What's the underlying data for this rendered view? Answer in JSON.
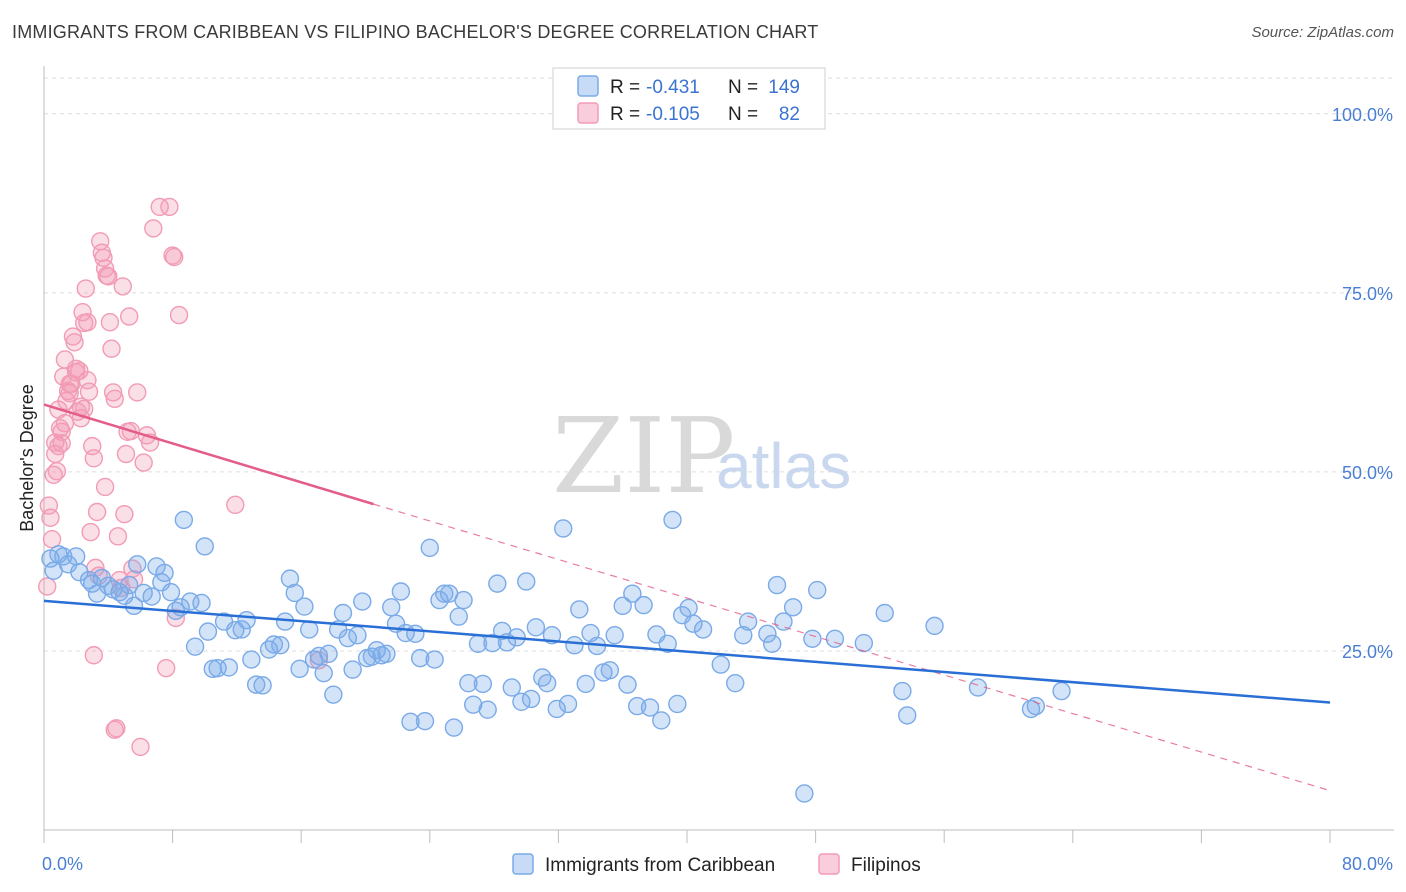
{
  "header": {
    "title": "IMMIGRANTS FROM CARIBBEAN VS FILIPINO BACHELOR'S DEGREE CORRELATION CHART",
    "source": "Source: ZipAtlas.com"
  },
  "watermark": {
    "zip": "ZIP",
    "atlas": "atlas"
  },
  "stats": [
    {
      "r_label": "R =",
      "r_value": "-0.431",
      "n_label": "N =",
      "n_value": "149",
      "color": "#7aaae8"
    },
    {
      "r_label": "R =",
      "r_value": "-0.105",
      "n_label": "N =",
      "n_value": "82",
      "color": "#f29bb5"
    }
  ],
  "chart_data": {
    "type": "scatter",
    "title": "IMMIGRANTS FROM CARIBBEAN VS FILIPINO BACHELOR'S DEGREE CORRELATION CHART",
    "xlabel": "",
    "ylabel": "Bachelor's Degree",
    "xlim": [
      0,
      80
    ],
    "ylim": [
      0,
      105
    ],
    "x_tick_labels": [
      "0.0%",
      "80.0%"
    ],
    "y_ticks": [
      25,
      50,
      75,
      100
    ],
    "y_tick_labels": [
      "25.0%",
      "50.0%",
      "75.0%",
      "100.0%"
    ],
    "grid": true,
    "legend": [
      "Immigrants from Caribbean",
      "Filipinos"
    ],
    "series": [
      {
        "name": "Immigrants from Caribbean",
        "color": "#7aaae8",
        "line_color": "#2a6fd6",
        "trend": {
          "x0": 0,
          "y0": 32.0,
          "x1": 80,
          "y1": 17.8
        },
        "points": [
          [
            0.4,
            37.9
          ],
          [
            0.6,
            36.2
          ],
          [
            0.9,
            38.5
          ],
          [
            1.2,
            38.2
          ],
          [
            1.5,
            37.1
          ],
          [
            2.0,
            38.2
          ],
          [
            2.2,
            36.0
          ],
          [
            2.8,
            34.9
          ],
          [
            3.0,
            34.4
          ],
          [
            3.3,
            33.0
          ],
          [
            3.6,
            35.2
          ],
          [
            4.0,
            34.1
          ],
          [
            4.3,
            33.6
          ],
          [
            4.7,
            33.2
          ],
          [
            5.0,
            32.7
          ],
          [
            5.3,
            34.2
          ],
          [
            5.6,
            31.3
          ],
          [
            5.8,
            37.1
          ],
          [
            6.2,
            33.1
          ],
          [
            6.7,
            32.6
          ],
          [
            7.0,
            36.8
          ],
          [
            7.3,
            34.6
          ],
          [
            7.5,
            35.9
          ],
          [
            7.9,
            33.2
          ],
          [
            8.2,
            30.6
          ],
          [
            8.5,
            31.1
          ],
          [
            8.7,
            43.3
          ],
          [
            9.1,
            31.9
          ],
          [
            9.4,
            25.6
          ],
          [
            9.8,
            31.7
          ],
          [
            10.0,
            39.6
          ],
          [
            10.2,
            27.7
          ],
          [
            10.5,
            22.5
          ],
          [
            10.8,
            22.6
          ],
          [
            11.2,
            29.1
          ],
          [
            11.5,
            22.7
          ],
          [
            11.9,
            27.9
          ],
          [
            12.3,
            28.0
          ],
          [
            12.6,
            29.3
          ],
          [
            12.9,
            23.8
          ],
          [
            13.2,
            20.3
          ],
          [
            13.6,
            20.2
          ],
          [
            14.0,
            25.2
          ],
          [
            14.3,
            25.9
          ],
          [
            14.7,
            25.8
          ],
          [
            15.0,
            29.1
          ],
          [
            15.3,
            35.1
          ],
          [
            15.6,
            33.1
          ],
          [
            15.9,
            22.5
          ],
          [
            16.2,
            31.2
          ],
          [
            16.5,
            28.0
          ],
          [
            16.8,
            23.8
          ],
          [
            17.1,
            24.3
          ],
          [
            17.4,
            21.9
          ],
          [
            17.7,
            24.6
          ],
          [
            18.0,
            18.9
          ],
          [
            18.3,
            28.0
          ],
          [
            18.6,
            30.3
          ],
          [
            18.9,
            26.8
          ],
          [
            19.2,
            22.4
          ],
          [
            19.5,
            27.2
          ],
          [
            19.8,
            31.9
          ],
          [
            20.1,
            24.0
          ],
          [
            20.4,
            24.2
          ],
          [
            20.7,
            25.1
          ],
          [
            21.0,
            24.4
          ],
          [
            21.3,
            24.6
          ],
          [
            21.6,
            31.1
          ],
          [
            21.9,
            28.8
          ],
          [
            22.2,
            33.3
          ],
          [
            22.5,
            27.5
          ],
          [
            22.8,
            15.1
          ],
          [
            23.1,
            27.4
          ],
          [
            23.4,
            24.0
          ],
          [
            23.7,
            15.2
          ],
          [
            24.0,
            39.4
          ],
          [
            24.3,
            23.8
          ],
          [
            24.6,
            32.1
          ],
          [
            24.9,
            33.0
          ],
          [
            25.2,
            33.0
          ],
          [
            25.5,
            14.3
          ],
          [
            25.8,
            29.8
          ],
          [
            26.1,
            32.1
          ],
          [
            26.4,
            20.5
          ],
          [
            26.7,
            17.5
          ],
          [
            27.0,
            26.0
          ],
          [
            27.3,
            20.4
          ],
          [
            27.6,
            16.8
          ],
          [
            27.9,
            26.1
          ],
          [
            28.2,
            34.4
          ],
          [
            28.5,
            27.8
          ],
          [
            28.8,
            26.2
          ],
          [
            29.1,
            19.9
          ],
          [
            29.4,
            26.9
          ],
          [
            29.7,
            17.9
          ],
          [
            30.0,
            34.7
          ],
          [
            30.3,
            18.3
          ],
          [
            30.6,
            28.3
          ],
          [
            31.0,
            21.3
          ],
          [
            31.3,
            20.5
          ],
          [
            31.6,
            27.2
          ],
          [
            31.9,
            16.9
          ],
          [
            32.3,
            42.1
          ],
          [
            32.6,
            17.6
          ],
          [
            33.0,
            25.8
          ],
          [
            33.3,
            30.8
          ],
          [
            33.7,
            20.4
          ],
          [
            34.0,
            27.5
          ],
          [
            34.4,
            25.7
          ],
          [
            34.8,
            22.0
          ],
          [
            35.2,
            22.3
          ],
          [
            35.5,
            27.2
          ],
          [
            36.0,
            31.3
          ],
          [
            36.3,
            20.3
          ],
          [
            36.6,
            33.0
          ],
          [
            36.9,
            17.3
          ],
          [
            37.3,
            31.4
          ],
          [
            37.7,
            17.1
          ],
          [
            38.1,
            27.3
          ],
          [
            38.4,
            15.3
          ],
          [
            38.8,
            26.0
          ],
          [
            39.1,
            43.3
          ],
          [
            39.4,
            17.6
          ],
          [
            39.7,
            30.0
          ],
          [
            40.1,
            31.0
          ],
          [
            40.4,
            28.8
          ],
          [
            41.0,
            28.0
          ],
          [
            42.1,
            23.1
          ],
          [
            43.0,
            20.5
          ],
          [
            43.5,
            27.2
          ],
          [
            43.8,
            29.1
          ],
          [
            45.0,
            27.4
          ],
          [
            45.3,
            26.0
          ],
          [
            45.6,
            34.2
          ],
          [
            46.0,
            29.1
          ],
          [
            46.6,
            31.1
          ],
          [
            47.8,
            26.7
          ],
          [
            48.1,
            33.5
          ],
          [
            49.2,
            26.7
          ],
          [
            51.0,
            26.1
          ],
          [
            52.3,
            30.3
          ],
          [
            53.4,
            19.4
          ],
          [
            53.7,
            16.0
          ],
          [
            55.4,
            28.5
          ],
          [
            58.1,
            19.9
          ],
          [
            61.4,
            16.9
          ],
          [
            61.7,
            17.3
          ],
          [
            63.3,
            19.4
          ],
          [
            47.3,
            5.1
          ]
        ]
      },
      {
        "name": "Filipinos",
        "color": "#f29bb5",
        "line_color": "#e45d8a",
        "trend": {
          "x0": 0,
          "y0": 59.4,
          "x1": 20.5,
          "y1": 45.5
        },
        "trend_dashed": {
          "x0": 20.5,
          "y0": 45.5,
          "x1": 80,
          "y1": 5.5
        },
        "points": [
          [
            0.2,
            34.0
          ],
          [
            0.3,
            45.3
          ],
          [
            0.4,
            43.6
          ],
          [
            0.5,
            40.6
          ],
          [
            0.6,
            49.6
          ],
          [
            0.7,
            54.1
          ],
          [
            0.8,
            50.1
          ],
          [
            0.9,
            53.6
          ],
          [
            1.0,
            56.1
          ],
          [
            1.1,
            55.6
          ],
          [
            1.2,
            63.3
          ],
          [
            1.3,
            56.8
          ],
          [
            1.4,
            59.9
          ],
          [
            1.5,
            61.3
          ],
          [
            1.6,
            62.3
          ],
          [
            1.7,
            62.3
          ],
          [
            1.8,
            68.9
          ],
          [
            1.9,
            68.1
          ],
          [
            2.0,
            63.9
          ],
          [
            2.1,
            58.4
          ],
          [
            2.2,
            64.1
          ],
          [
            2.3,
            59.1
          ],
          [
            2.4,
            72.3
          ],
          [
            2.5,
            70.8
          ],
          [
            2.6,
            75.6
          ],
          [
            2.7,
            70.9
          ],
          [
            2.8,
            61.2
          ],
          [
            2.9,
            41.6
          ],
          [
            3.0,
            53.6
          ],
          [
            3.1,
            51.9
          ],
          [
            3.2,
            36.6
          ],
          [
            3.3,
            44.4
          ],
          [
            3.4,
            35.5
          ],
          [
            3.5,
            82.2
          ],
          [
            3.6,
            80.6
          ],
          [
            3.7,
            79.9
          ],
          [
            3.8,
            78.4
          ],
          [
            3.9,
            77.4
          ],
          [
            4.0,
            77.3
          ],
          [
            4.1,
            70.9
          ],
          [
            4.2,
            67.2
          ],
          [
            4.3,
            61.1
          ],
          [
            4.4,
            14.0
          ],
          [
            4.5,
            14.2
          ],
          [
            4.6,
            41.0
          ],
          [
            4.7,
            34.9
          ],
          [
            4.8,
            33.8
          ],
          [
            4.9,
            75.9
          ],
          [
            5.0,
            44.1
          ],
          [
            5.1,
            52.5
          ],
          [
            5.2,
            55.6
          ],
          [
            5.3,
            71.7
          ],
          [
            5.4,
            55.7
          ],
          [
            5.5,
            36.5
          ],
          [
            5.6,
            35.0
          ],
          [
            5.8,
            61.1
          ],
          [
            6.0,
            11.6
          ],
          [
            6.2,
            51.3
          ],
          [
            6.4,
            55.1
          ],
          [
            6.6,
            54.1
          ],
          [
            6.8,
            84.0
          ],
          [
            7.2,
            87.0
          ],
          [
            7.6,
            22.6
          ],
          [
            7.8,
            87.0
          ],
          [
            8.0,
            80.2
          ],
          [
            8.1,
            80.0
          ],
          [
            8.2,
            29.6
          ],
          [
            8.4,
            71.9
          ],
          [
            11.9,
            45.4
          ],
          [
            17.1,
            23.7
          ],
          [
            0.9,
            58.7
          ],
          [
            1.3,
            65.7
          ],
          [
            2.0,
            64.4
          ],
          [
            2.5,
            58.8
          ],
          [
            3.1,
            24.4
          ],
          [
            1.6,
            61.0
          ],
          [
            2.3,
            57.5
          ],
          [
            0.7,
            52.5
          ],
          [
            3.8,
            47.9
          ],
          [
            1.1,
            54.0
          ],
          [
            2.7,
            62.8
          ],
          [
            4.4,
            60.2
          ]
        ]
      }
    ]
  }
}
